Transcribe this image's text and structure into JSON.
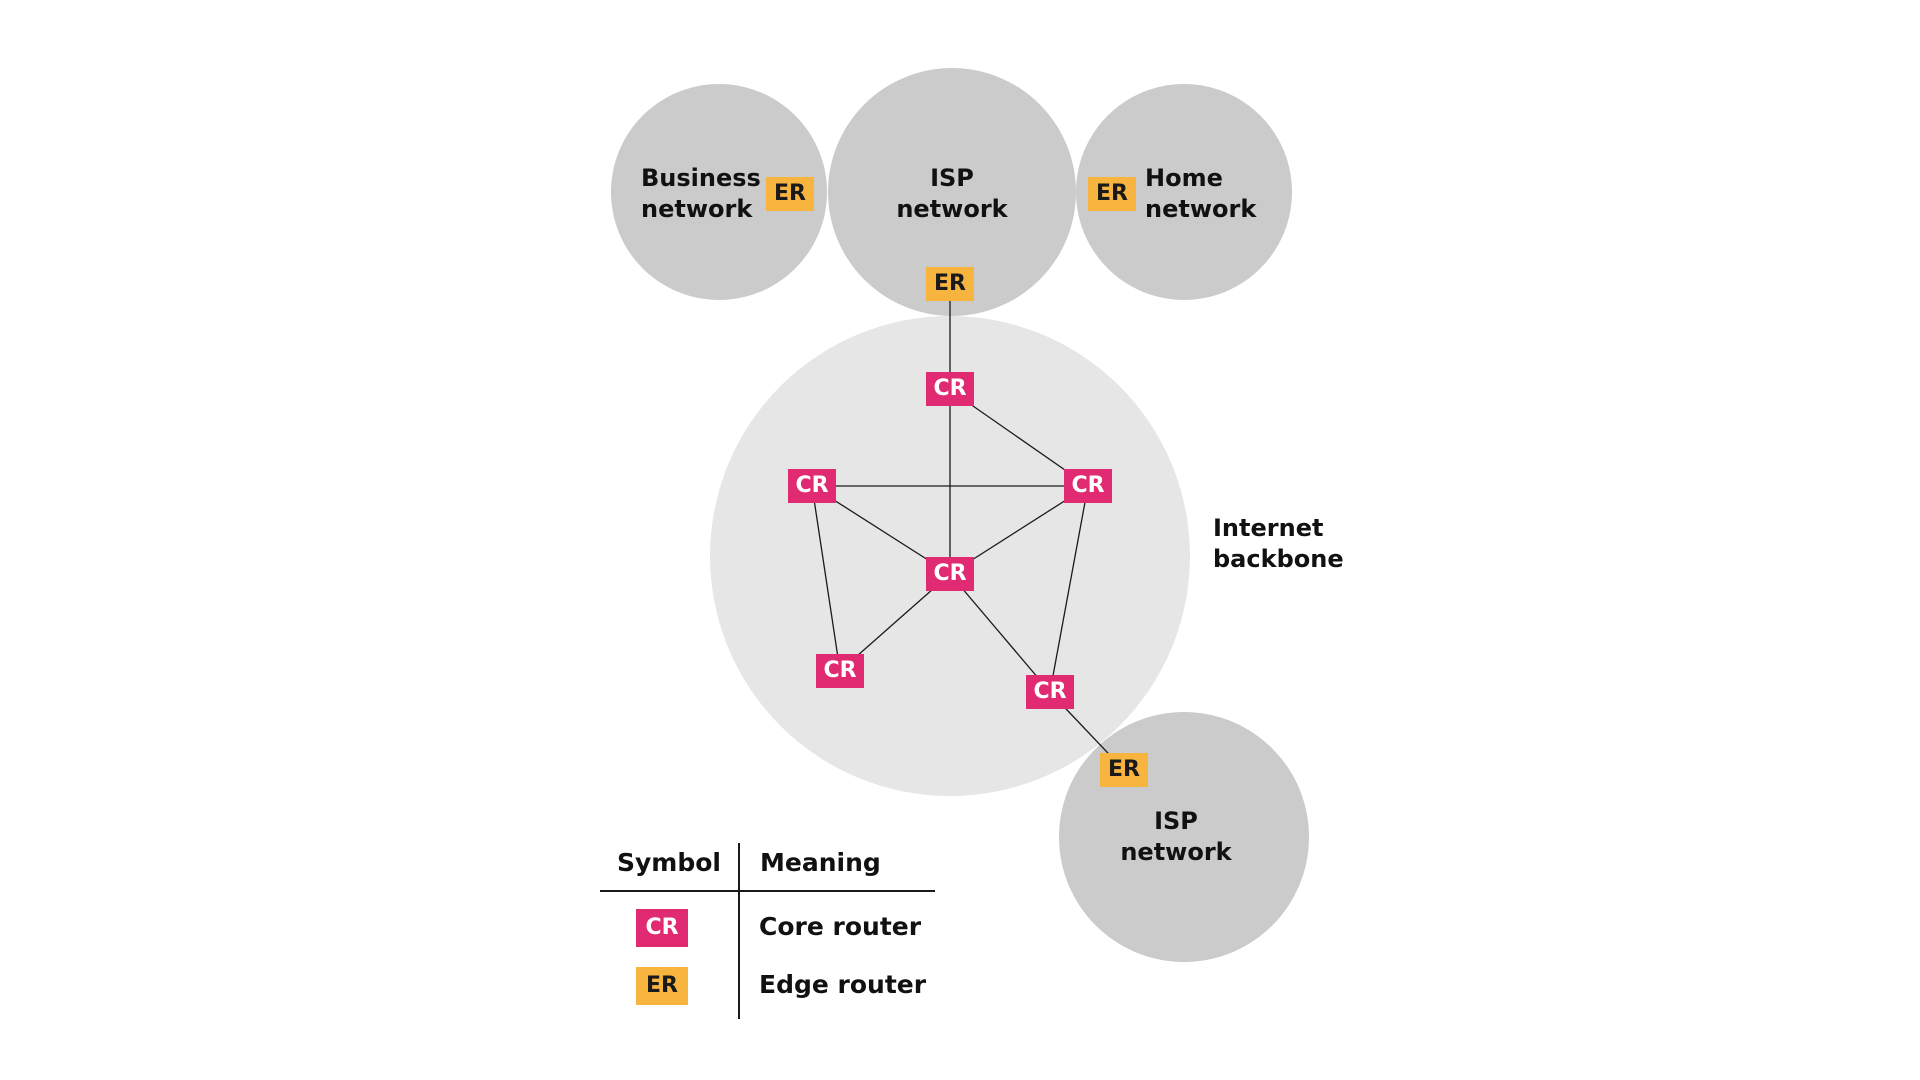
{
  "colors": {
    "core_router": "#e02b73",
    "edge_router": "#f7b43f",
    "network_circle": "#cbcbcb",
    "backbone_circle": "#e6e6e6",
    "line": "#1a1a1a"
  },
  "networks": {
    "business": {
      "line1": "Business",
      "line2": "network"
    },
    "isp_top": {
      "line1": "ISP",
      "line2": "network"
    },
    "home": {
      "line1": "Home",
      "line2": "network"
    },
    "isp_bottom": {
      "line1": "ISP",
      "line2": "network"
    }
  },
  "backbone": {
    "line1": "Internet",
    "line2": "backbone"
  },
  "routers": {
    "core_label": "CR",
    "edge_label": "ER"
  },
  "legend": {
    "symbol_header": "Symbol",
    "meaning_header": "Meaning",
    "rows": [
      {
        "symbol": "CR",
        "meaning": "Core router",
        "icon": "core-router-icon"
      },
      {
        "symbol": "ER",
        "meaning": "Edge router",
        "icon": "edge-router-icon"
      }
    ]
  }
}
